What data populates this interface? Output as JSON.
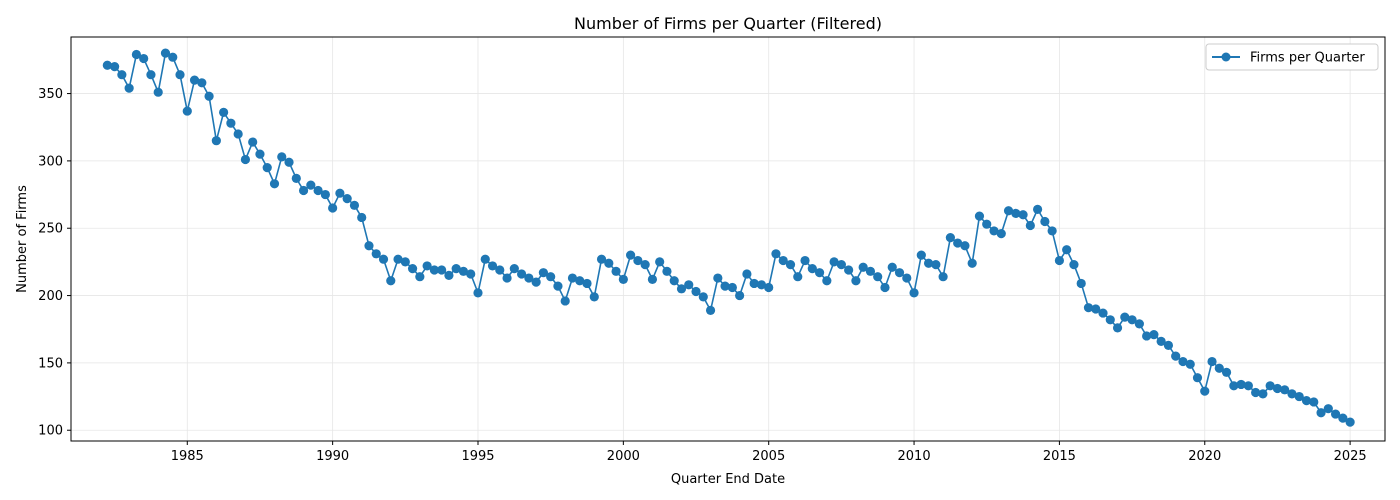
{
  "colors": {
    "series": "#1f77b4",
    "grid": "#e6e6e6",
    "axis": "#000000"
  },
  "chart_data": {
    "type": "line",
    "title": "Number of Firms per Quarter (Filtered)",
    "xlabel": "Quarter End Date",
    "ylabel": "Number of Firms",
    "xlim": [
      1981.0,
      2026.2
    ],
    "ylim": [
      92,
      392
    ],
    "xticks": [
      1985,
      1990,
      1995,
      2000,
      2005,
      2010,
      2015,
      2020,
      2025
    ],
    "yticks": [
      100,
      150,
      200,
      250,
      300,
      350
    ],
    "grid": true,
    "legend_position": "top-right",
    "marker": "circle",
    "series": [
      {
        "name": "Firms per Quarter",
        "x": [
          1982.25,
          1982.5,
          1982.75,
          1983.0,
          1983.25,
          1983.5,
          1983.75,
          1984.0,
          1984.25,
          1984.5,
          1984.75,
          1985.0,
          1985.25,
          1985.5,
          1985.75,
          1986.0,
          1986.25,
          1986.5,
          1986.75,
          1987.0,
          1987.25,
          1987.5,
          1987.75,
          1988.0,
          1988.25,
          1988.5,
          1988.75,
          1989.0,
          1989.25,
          1989.5,
          1989.75,
          1990.0,
          1990.25,
          1990.5,
          1990.75,
          1991.0,
          1991.25,
          1991.5,
          1991.75,
          1992.0,
          1992.25,
          1992.5,
          1992.75,
          1993.0,
          1993.25,
          1993.5,
          1993.75,
          1994.0,
          1994.25,
          1994.5,
          1994.75,
          1995.0,
          1995.25,
          1995.5,
          1995.75,
          1996.0,
          1996.25,
          1996.5,
          1996.75,
          1997.0,
          1997.25,
          1997.5,
          1997.75,
          1998.0,
          1998.25,
          1998.5,
          1998.75,
          1999.0,
          1999.25,
          1999.5,
          1999.75,
          2000.0,
          2000.25,
          2000.5,
          2000.75,
          2001.0,
          2001.25,
          2001.5,
          2001.75,
          2002.0,
          2002.25,
          2002.5,
          2002.75,
          2003.0,
          2003.25,
          2003.5,
          2003.75,
          2004.0,
          2004.25,
          2004.5,
          2004.75,
          2005.0,
          2005.25,
          2005.5,
          2005.75,
          2006.0,
          2006.25,
          2006.5,
          2006.75,
          2007.0,
          2007.25,
          2007.5,
          2007.75,
          2008.0,
          2008.25,
          2008.5,
          2008.75,
          2009.0,
          2009.25,
          2009.5,
          2009.75,
          2010.0,
          2010.25,
          2010.5,
          2010.75,
          2011.0,
          2011.25,
          2011.5,
          2011.75,
          2012.0,
          2012.25,
          2012.5,
          2012.75,
          2013.0,
          2013.25,
          2013.5,
          2013.75,
          2014.0,
          2014.25,
          2014.5,
          2014.75,
          2015.0,
          2015.25,
          2015.5,
          2015.75,
          2016.0,
          2016.25,
          2016.5,
          2016.75,
          2017.0,
          2017.25,
          2017.5,
          2017.75,
          2018.0,
          2018.25,
          2018.5,
          2018.75,
          2019.0,
          2019.25,
          2019.5,
          2019.75,
          2020.0,
          2020.25,
          2020.5,
          2020.75,
          2021.0,
          2021.25,
          2021.5,
          2021.75,
          2022.0,
          2022.25,
          2022.5,
          2022.75,
          2023.0,
          2023.25,
          2023.5,
          2023.75,
          2024.0,
          2024.25,
          2024.5,
          2024.75,
          2025.0
        ],
        "values": [
          371,
          370,
          364,
          354,
          379,
          376,
          364,
          351,
          380,
          377,
          364,
          337,
          360,
          358,
          348,
          315,
          336,
          328,
          320,
          301,
          314,
          305,
          295,
          283,
          303,
          299,
          287,
          278,
          282,
          278,
          275,
          265,
          276,
          272,
          267,
          258,
          237,
          231,
          227,
          211,
          227,
          225,
          220,
          214,
          222,
          219,
          219,
          215,
          220,
          218,
          216,
          202,
          227,
          222,
          219,
          213,
          220,
          216,
          213,
          210,
          217,
          214,
          207,
          196,
          213,
          211,
          209,
          199,
          227,
          224,
          218,
          212,
          230,
          226,
          223,
          212,
          225,
          218,
          211,
          205,
          208,
          203,
          199,
          189,
          213,
          207,
          206,
          200,
          216,
          209,
          208,
          206,
          231,
          226,
          223,
          214,
          226,
          220,
          217,
          211,
          225,
          223,
          219,
          211,
          221,
          218,
          214,
          206,
          221,
          217,
          213,
          202,
          230,
          224,
          223,
          214,
          243,
          239,
          237,
          224,
          259,
          253,
          248,
          246,
          263,
          261,
          260,
          252,
          264,
          255,
          248,
          226,
          234,
          223,
          209,
          191,
          190,
          187,
          182,
          176,
          184,
          182,
          179,
          170,
          171,
          166,
          163,
          155,
          151,
          149,
          139,
          129,
          151,
          146,
          143,
          133,
          134,
          133,
          128,
          127,
          133,
          131,
          130,
          127,
          125,
          122,
          121,
          113,
          116,
          112,
          109,
          106
        ]
      }
    ]
  }
}
